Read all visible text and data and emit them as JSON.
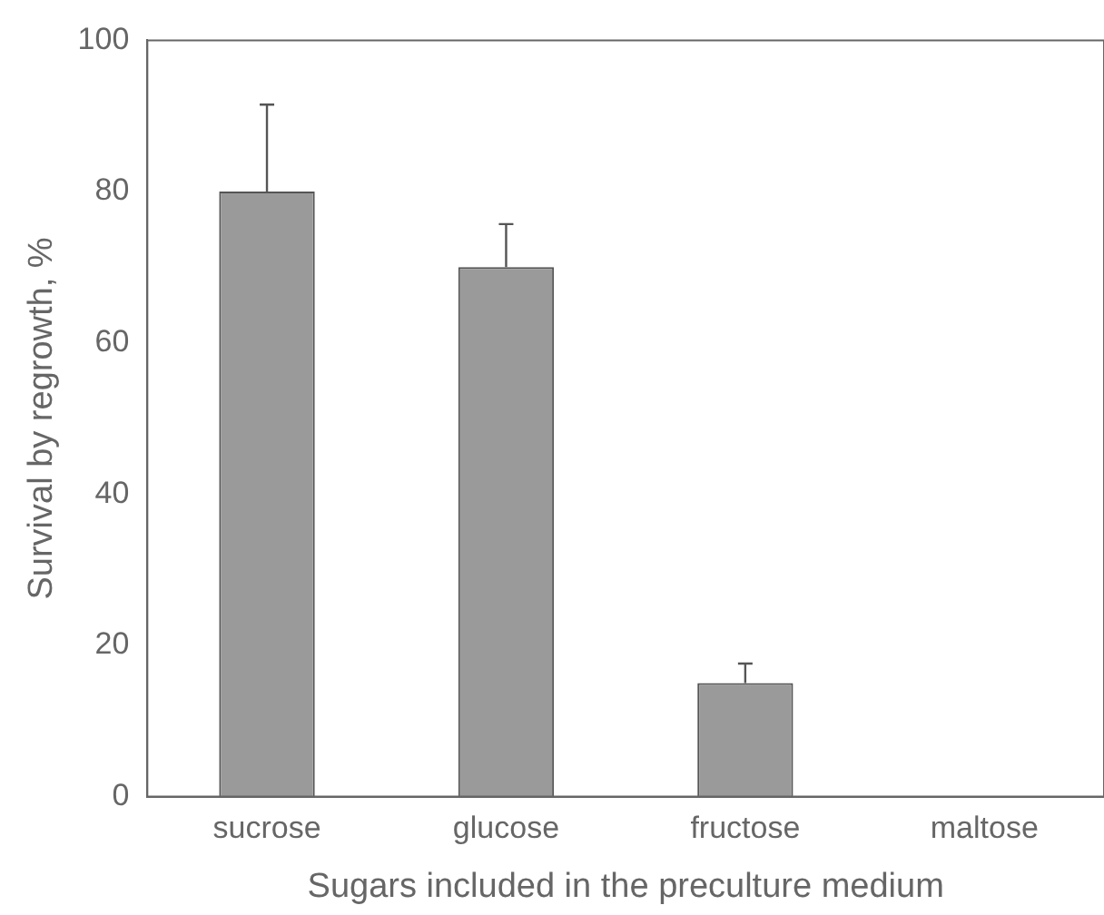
{
  "chart_data": {
    "type": "bar",
    "xlabel": "Sugars included in the preculture medium",
    "ylabel": "Survival by regrowth, %",
    "categories": [
      "sucrose",
      "glucose",
      "fructose",
      "maltose"
    ],
    "values": [
      80,
      70,
      15,
      0
    ],
    "errors": [
      [
        80,
        91.5
      ],
      [
        70,
        75.7
      ],
      [
        15,
        17.6
      ],
      null
    ],
    "color": "#9a9a9a",
    "ylim": [
      0,
      100
    ],
    "yticks": [
      0,
      20,
      40,
      60,
      80,
      100
    ],
    "grid": false,
    "legend": false
  }
}
